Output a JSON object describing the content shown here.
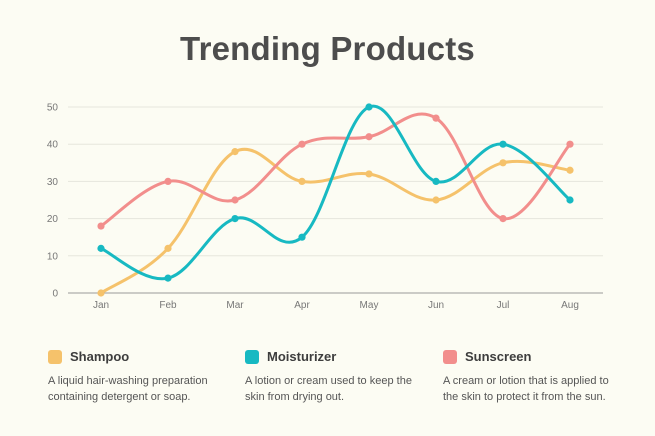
{
  "chart_data": {
    "type": "line",
    "title": "Trending Products",
    "categories": [
      "Jan",
      "Feb",
      "Mar",
      "Apr",
      "May",
      "Jun",
      "Jul",
      "Aug"
    ],
    "ylim": [
      0,
      50
    ],
    "yticks": [
      0,
      10,
      20,
      30,
      40,
      50
    ],
    "grid": true,
    "legend_position": "bottom",
    "series": [
      {
        "name": "Shampoo",
        "color": "#f5c26b",
        "values": [
          0,
          12,
          38,
          30,
          32,
          25,
          35,
          33
        ],
        "description": "A liquid hair-washing preparation containing detergent or soap."
      },
      {
        "name": "Moisturizer",
        "color": "#17b9c2",
        "values": [
          12,
          4,
          20,
          15,
          50,
          30,
          40,
          25
        ],
        "description": "A lotion or cream used to keep the skin from drying out."
      },
      {
        "name": "Sunscreen",
        "color": "#f28e8c",
        "values": [
          18,
          30,
          25,
          40,
          42,
          47,
          20,
          40
        ],
        "description": "A cream or lotion that is applied to the skin to protect it from the sun."
      }
    ]
  }
}
